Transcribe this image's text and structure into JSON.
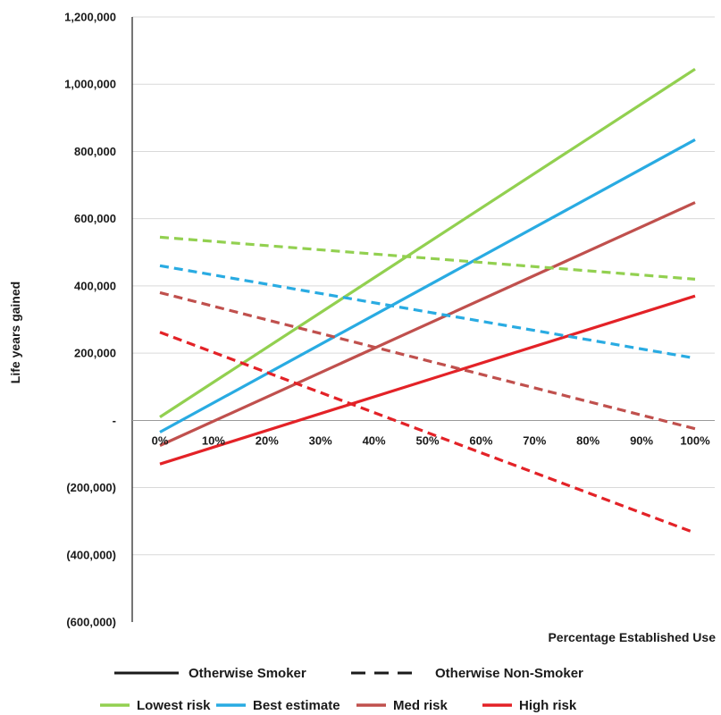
{
  "chart_data": {
    "type": "line",
    "xlabel": "Percentage Established Use",
    "ylabel": "Life years gained",
    "x": [
      0,
      100
    ],
    "x_tick_labels": [
      "0%",
      "10%",
      "20%",
      "30%",
      "40%",
      "50%",
      "60%",
      "70%",
      "80%",
      "90%",
      "100%"
    ],
    "x_tick_values": [
      0,
      10,
      20,
      30,
      40,
      50,
      60,
      70,
      80,
      90,
      100
    ],
    "ylim": [
      -600000,
      1200000
    ],
    "y_tick_values": [
      1200000,
      1000000,
      800000,
      600000,
      400000,
      200000,
      0,
      -200000,
      -400000,
      -600000
    ],
    "y_tick_labels": [
      "1,200,000",
      "1,000,000",
      "800,000",
      "600,000",
      "400,000",
      "200,000",
      "-",
      "(200,000)",
      "(400,000)",
      "(600,000)"
    ],
    "grid": "horizontal",
    "legend_style": {
      "items": [
        {
          "label": "Otherwise Smoker",
          "dash": "solid",
          "color": "#1a1a1a"
        },
        {
          "label": "Otherwise Non-Smoker",
          "dash": "dashed",
          "color": "#1a1a1a"
        }
      ]
    },
    "legend_color": {
      "items": [
        {
          "label": "Lowest risk",
          "color": "#92D050"
        },
        {
          "label": "Best estimate",
          "color": "#29ABE2"
        },
        {
          "label": "Med risk",
          "color": "#C0504D"
        },
        {
          "label": "High risk",
          "color": "#E32227"
        }
      ]
    },
    "legend_placement": "bottom",
    "series": [
      {
        "group": "Lowest risk",
        "dash": "solid",
        "color": "#92D050",
        "x": [
          0,
          100
        ],
        "y": [
          10000,
          1045000
        ]
      },
      {
        "group": "Best estimate",
        "dash": "solid",
        "color": "#29ABE2",
        "x": [
          0,
          100
        ],
        "y": [
          -35000,
          835000
        ]
      },
      {
        "group": "Med risk",
        "dash": "solid",
        "color": "#C0504D",
        "x": [
          0,
          100
        ],
        "y": [
          -75000,
          648000
        ]
      },
      {
        "group": "High risk",
        "dash": "solid",
        "color": "#E32227",
        "x": [
          0,
          100
        ],
        "y": [
          -130000,
          370000
        ]
      },
      {
        "group": "Lowest risk",
        "dash": "dashed",
        "color": "#92D050",
        "x": [
          0,
          100
        ],
        "y": [
          545000,
          420000
        ]
      },
      {
        "group": "Best estimate",
        "dash": "dashed",
        "color": "#29ABE2",
        "x": [
          0,
          100
        ],
        "y": [
          460000,
          185000
        ]
      },
      {
        "group": "Med risk",
        "dash": "dashed",
        "color": "#C0504D",
        "x": [
          0,
          100
        ],
        "y": [
          380000,
          -25000
        ]
      },
      {
        "group": "High risk",
        "dash": "dashed",
        "color": "#E32227",
        "x": [
          0,
          100
        ],
        "y": [
          262000,
          -335000
        ]
      }
    ]
  }
}
